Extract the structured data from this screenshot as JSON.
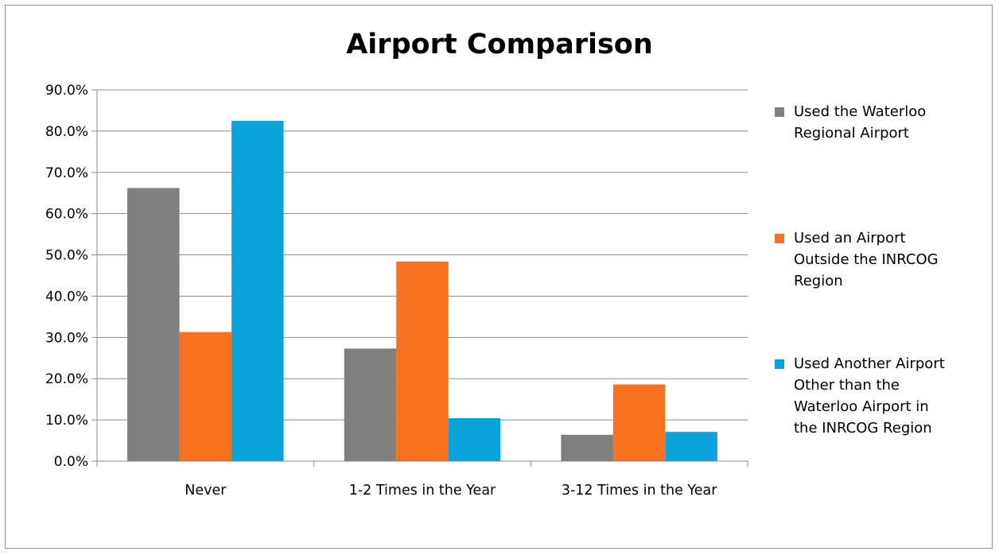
{
  "chart_data": {
    "type": "bar",
    "title": "Airport Comparison",
    "categories": [
      "Never",
      "1-2 Times in the Year",
      "3-12 Times in the Year"
    ],
    "series": [
      {
        "name": "Used the Waterloo Regional Airport",
        "color": "#7f7f7f",
        "values": [
          66.2,
          27.3,
          6.4
        ]
      },
      {
        "name": "Used an Airport Outside the INRCOG Region",
        "color": "#f7711e",
        "values": [
          31.3,
          48.4,
          18.6
        ]
      },
      {
        "name": "Used Another Airport Other than the Waterloo Airport in the INRCOG Region",
        "color": "#0ba3db",
        "values": [
          82.5,
          10.4,
          7.1
        ]
      }
    ],
    "ylim": [
      0,
      90
    ],
    "yticks": [
      "0.0%",
      "10.0%",
      "20.0%",
      "30.0%",
      "40.0%",
      "50.0%",
      "60.0%",
      "70.0%",
      "80.0%",
      "90.0%"
    ],
    "grid": true,
    "legend_position": "right",
    "xlabel": "",
    "ylabel": ""
  },
  "legend_lines": [
    [
      "Used the Waterloo",
      "Regional Airport"
    ],
    [
      "Used an Airport",
      "Outside the INRCOG",
      "Region"
    ],
    [
      "Used Another Airport",
      "Other than the",
      "Waterloo Airport in",
      "the INRCOG Region"
    ]
  ]
}
